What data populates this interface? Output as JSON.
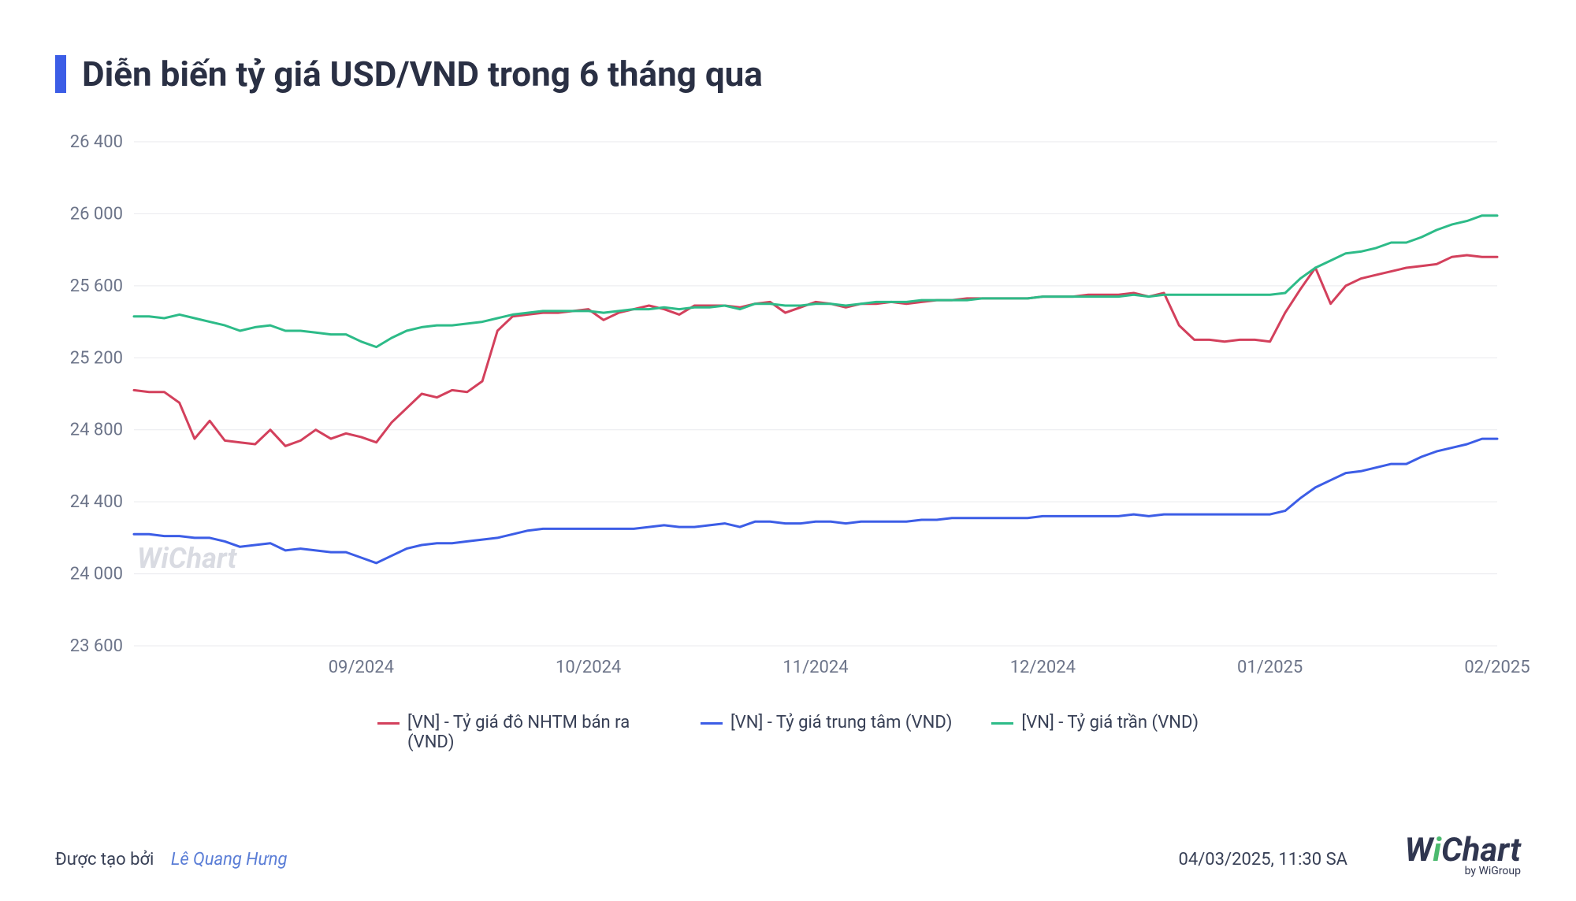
{
  "title": "Diễn biến tỷ giá USD/VND trong 6 tháng qua",
  "watermark": "WiChart",
  "chart": {
    "type": "line",
    "background_color": "#ffffff",
    "grid_color": "#e9eaee",
    "axis_text_color": "#6c7489",
    "axis_fontsize": 22,
    "ylim": [
      23600,
      26400
    ],
    "ytick_step": 400,
    "yticks": [
      23600,
      24000,
      24400,
      24800,
      25200,
      25600,
      26000,
      26400
    ],
    "ytick_labels": [
      "23 600",
      "24 000",
      "24 400",
      "24 800",
      "25 200",
      "25 600",
      "26 000",
      "26 400"
    ],
    "x_domain_len": 180,
    "xticks": [
      {
        "pos": 30,
        "label": "09/2024"
      },
      {
        "pos": 60,
        "label": "10/2024"
      },
      {
        "pos": 90,
        "label": "11/2024"
      },
      {
        "pos": 120,
        "label": "12/2024"
      },
      {
        "pos": 150,
        "label": "01/2025"
      },
      {
        "pos": 180,
        "label": "02/2025"
      }
    ],
    "line_width": 3,
    "series": [
      {
        "name": "[VN] - Tỷ giá đô NHTM bán ra (VND)",
        "color": "#d3405c",
        "data": [
          [
            0,
            25020
          ],
          [
            2,
            25010
          ],
          [
            4,
            25010
          ],
          [
            6,
            24950
          ],
          [
            8,
            24750
          ],
          [
            10,
            24850
          ],
          [
            12,
            24740
          ],
          [
            14,
            24730
          ],
          [
            16,
            24720
          ],
          [
            18,
            24800
          ],
          [
            20,
            24710
          ],
          [
            22,
            24740
          ],
          [
            24,
            24800
          ],
          [
            26,
            24750
          ],
          [
            28,
            24780
          ],
          [
            30,
            24760
          ],
          [
            32,
            24730
          ],
          [
            34,
            24840
          ],
          [
            36,
            24920
          ],
          [
            38,
            25000
          ],
          [
            40,
            24980
          ],
          [
            42,
            25020
          ],
          [
            44,
            25010
          ],
          [
            46,
            25070
          ],
          [
            48,
            25350
          ],
          [
            50,
            25430
          ],
          [
            52,
            25440
          ],
          [
            54,
            25450
          ],
          [
            56,
            25450
          ],
          [
            58,
            25460
          ],
          [
            60,
            25470
          ],
          [
            62,
            25410
          ],
          [
            64,
            25450
          ],
          [
            66,
            25470
          ],
          [
            68,
            25490
          ],
          [
            70,
            25470
          ],
          [
            72,
            25440
          ],
          [
            74,
            25490
          ],
          [
            76,
            25490
          ],
          [
            78,
            25490
          ],
          [
            80,
            25480
          ],
          [
            82,
            25500
          ],
          [
            84,
            25510
          ],
          [
            86,
            25450
          ],
          [
            88,
            25480
          ],
          [
            90,
            25510
          ],
          [
            92,
            25500
          ],
          [
            94,
            25480
          ],
          [
            96,
            25500
          ],
          [
            98,
            25500
          ],
          [
            100,
            25510
          ],
          [
            102,
            25500
          ],
          [
            104,
            25510
          ],
          [
            106,
            25520
          ],
          [
            108,
            25520
          ],
          [
            110,
            25530
          ],
          [
            112,
            25530
          ],
          [
            114,
            25530
          ],
          [
            116,
            25530
          ],
          [
            118,
            25530
          ],
          [
            120,
            25540
          ],
          [
            122,
            25540
          ],
          [
            124,
            25540
          ],
          [
            126,
            25550
          ],
          [
            128,
            25550
          ],
          [
            130,
            25550
          ],
          [
            132,
            25560
          ],
          [
            134,
            25540
          ],
          [
            136,
            25560
          ],
          [
            138,
            25380
          ],
          [
            140,
            25300
          ],
          [
            142,
            25300
          ],
          [
            144,
            25290
          ],
          [
            146,
            25300
          ],
          [
            148,
            25300
          ],
          [
            150,
            25290
          ],
          [
            152,
            25450
          ],
          [
            154,
            25580
          ],
          [
            156,
            25700
          ],
          [
            158,
            25500
          ],
          [
            160,
            25600
          ],
          [
            162,
            25640
          ],
          [
            164,
            25660
          ],
          [
            166,
            25680
          ],
          [
            168,
            25700
          ],
          [
            170,
            25710
          ],
          [
            172,
            25720
          ],
          [
            174,
            25760
          ],
          [
            176,
            25770
          ],
          [
            178,
            25760
          ],
          [
            180,
            25760
          ]
        ]
      },
      {
        "name": "[VN] - Tỷ giá trung tâm (VND)",
        "color": "#3c5de6",
        "data": [
          [
            0,
            24220
          ],
          [
            2,
            24220
          ],
          [
            4,
            24210
          ],
          [
            6,
            24210
          ],
          [
            8,
            24200
          ],
          [
            10,
            24200
          ],
          [
            12,
            24180
          ],
          [
            14,
            24150
          ],
          [
            16,
            24160
          ],
          [
            18,
            24170
          ],
          [
            20,
            24130
          ],
          [
            22,
            24140
          ],
          [
            24,
            24130
          ],
          [
            26,
            24120
          ],
          [
            28,
            24120
          ],
          [
            30,
            24090
          ],
          [
            32,
            24060
          ],
          [
            34,
            24100
          ],
          [
            36,
            24140
          ],
          [
            38,
            24160
          ],
          [
            40,
            24170
          ],
          [
            42,
            24170
          ],
          [
            44,
            24180
          ],
          [
            46,
            24190
          ],
          [
            48,
            24200
          ],
          [
            50,
            24220
          ],
          [
            52,
            24240
          ],
          [
            54,
            24250
          ],
          [
            56,
            24250
          ],
          [
            58,
            24250
          ],
          [
            60,
            24250
          ],
          [
            62,
            24250
          ],
          [
            64,
            24250
          ],
          [
            66,
            24250
          ],
          [
            68,
            24260
          ],
          [
            70,
            24270
          ],
          [
            72,
            24260
          ],
          [
            74,
            24260
          ],
          [
            76,
            24270
          ],
          [
            78,
            24280
          ],
          [
            80,
            24260
          ],
          [
            82,
            24290
          ],
          [
            84,
            24290
          ],
          [
            86,
            24280
          ],
          [
            88,
            24280
          ],
          [
            90,
            24290
          ],
          [
            92,
            24290
          ],
          [
            94,
            24280
          ],
          [
            96,
            24290
          ],
          [
            98,
            24290
          ],
          [
            100,
            24290
          ],
          [
            102,
            24290
          ],
          [
            104,
            24300
          ],
          [
            106,
            24300
          ],
          [
            108,
            24310
          ],
          [
            110,
            24310
          ],
          [
            112,
            24310
          ],
          [
            114,
            24310
          ],
          [
            116,
            24310
          ],
          [
            118,
            24310
          ],
          [
            120,
            24320
          ],
          [
            122,
            24320
          ],
          [
            124,
            24320
          ],
          [
            126,
            24320
          ],
          [
            128,
            24320
          ],
          [
            130,
            24320
          ],
          [
            132,
            24330
          ],
          [
            134,
            24320
          ],
          [
            136,
            24330
          ],
          [
            138,
            24330
          ],
          [
            140,
            24330
          ],
          [
            142,
            24330
          ],
          [
            144,
            24330
          ],
          [
            146,
            24330
          ],
          [
            148,
            24330
          ],
          [
            150,
            24330
          ],
          [
            152,
            24350
          ],
          [
            154,
            24420
          ],
          [
            156,
            24480
          ],
          [
            158,
            24520
          ],
          [
            160,
            24560
          ],
          [
            162,
            24570
          ],
          [
            164,
            24590
          ],
          [
            166,
            24610
          ],
          [
            168,
            24610
          ],
          [
            170,
            24650
          ],
          [
            172,
            24680
          ],
          [
            174,
            24700
          ],
          [
            176,
            24720
          ],
          [
            178,
            24750
          ],
          [
            180,
            24750
          ]
        ]
      },
      {
        "name": "[VN] - Tỷ giá trần (VND)",
        "color": "#2dbb88",
        "data": [
          [
            0,
            25430
          ],
          [
            2,
            25430
          ],
          [
            4,
            25420
          ],
          [
            6,
            25440
          ],
          [
            8,
            25420
          ],
          [
            10,
            25400
          ],
          [
            12,
            25380
          ],
          [
            14,
            25350
          ],
          [
            16,
            25370
          ],
          [
            18,
            25380
          ],
          [
            20,
            25350
          ],
          [
            22,
            25350
          ],
          [
            24,
            25340
          ],
          [
            26,
            25330
          ],
          [
            28,
            25330
          ],
          [
            30,
            25290
          ],
          [
            32,
            25260
          ],
          [
            34,
            25310
          ],
          [
            36,
            25350
          ],
          [
            38,
            25370
          ],
          [
            40,
            25380
          ],
          [
            42,
            25380
          ],
          [
            44,
            25390
          ],
          [
            46,
            25400
          ],
          [
            48,
            25420
          ],
          [
            50,
            25440
          ],
          [
            52,
            25450
          ],
          [
            54,
            25460
          ],
          [
            56,
            25460
          ],
          [
            58,
            25460
          ],
          [
            60,
            25460
          ],
          [
            62,
            25450
          ],
          [
            64,
            25460
          ],
          [
            66,
            25470
          ],
          [
            68,
            25470
          ],
          [
            70,
            25480
          ],
          [
            72,
            25470
          ],
          [
            74,
            25480
          ],
          [
            76,
            25480
          ],
          [
            78,
            25490
          ],
          [
            80,
            25470
          ],
          [
            82,
            25500
          ],
          [
            84,
            25500
          ],
          [
            86,
            25490
          ],
          [
            88,
            25490
          ],
          [
            90,
            25500
          ],
          [
            92,
            25500
          ],
          [
            94,
            25490
          ],
          [
            96,
            25500
          ],
          [
            98,
            25510
          ],
          [
            100,
            25510
          ],
          [
            102,
            25510
          ],
          [
            104,
            25520
          ],
          [
            106,
            25520
          ],
          [
            108,
            25520
          ],
          [
            110,
            25520
          ],
          [
            112,
            25530
          ],
          [
            114,
            25530
          ],
          [
            116,
            25530
          ],
          [
            118,
            25530
          ],
          [
            120,
            25540
          ],
          [
            122,
            25540
          ],
          [
            124,
            25540
          ],
          [
            126,
            25540
          ],
          [
            128,
            25540
          ],
          [
            130,
            25540
          ],
          [
            132,
            25550
          ],
          [
            134,
            25540
          ],
          [
            136,
            25550
          ],
          [
            138,
            25550
          ],
          [
            140,
            25550
          ],
          [
            142,
            25550
          ],
          [
            144,
            25550
          ],
          [
            146,
            25550
          ],
          [
            148,
            25550
          ],
          [
            150,
            25550
          ],
          [
            152,
            25560
          ],
          [
            154,
            25640
          ],
          [
            156,
            25700
          ],
          [
            158,
            25740
          ],
          [
            160,
            25780
          ],
          [
            162,
            25790
          ],
          [
            164,
            25810
          ],
          [
            166,
            25840
          ],
          [
            168,
            25840
          ],
          [
            170,
            25870
          ],
          [
            172,
            25910
          ],
          [
            174,
            25940
          ],
          [
            176,
            25960
          ],
          [
            178,
            25990
          ],
          [
            180,
            25990
          ]
        ]
      }
    ]
  },
  "legend_items": [
    {
      "label": "[VN] - Tỷ giá đô NHTM bán ra (VND)",
      "color": "#d3405c"
    },
    {
      "label": "[VN] - Tỷ giá trung tâm (VND)",
      "color": "#3c5de6"
    },
    {
      "label": "[VN] - Tỷ giá trần (VND)",
      "color": "#2dbb88"
    }
  ],
  "footer": {
    "created_by_label": "Được tạo bởi",
    "author": "Lê Quang Hưng",
    "timestamp": "04/03/2025, 11:30 SA"
  },
  "logo": {
    "prefix": "W",
    "dot": "i",
    "suffix": "Chart",
    "sub": "by WiGroup"
  }
}
